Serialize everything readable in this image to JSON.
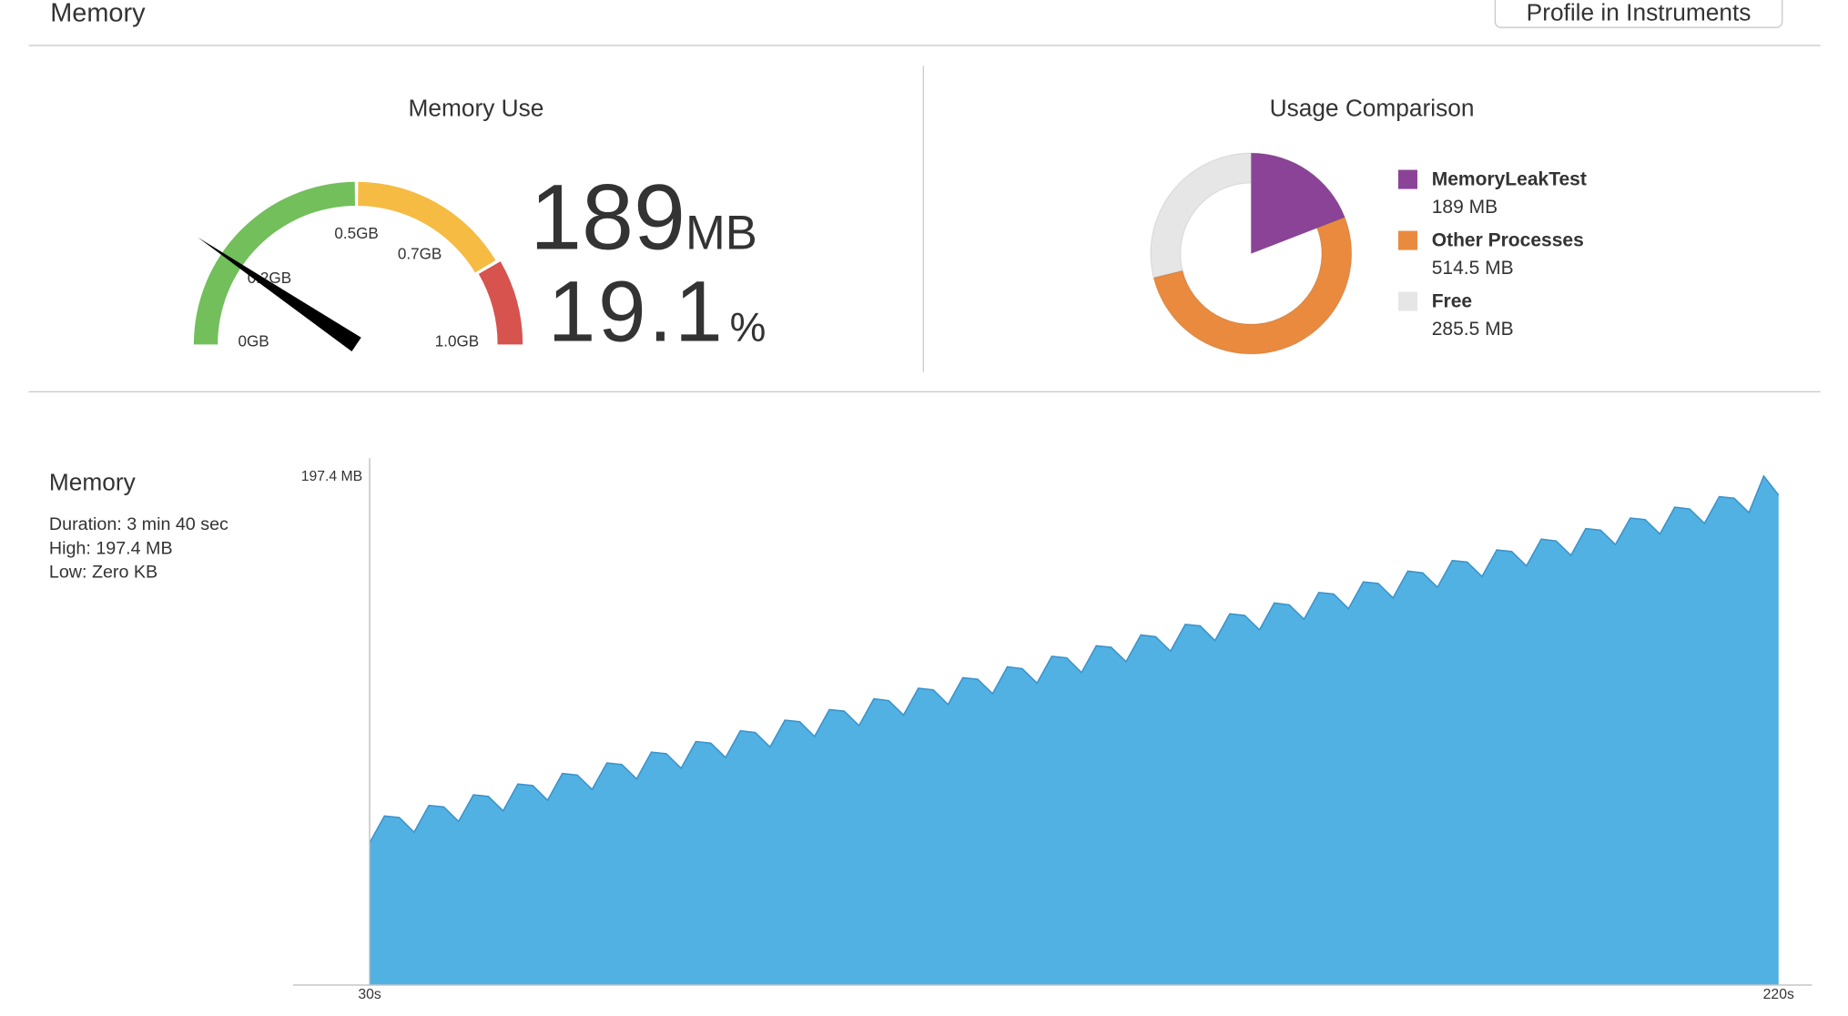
{
  "header": {
    "title": "Memory",
    "button": "Profile in Instruments"
  },
  "memory_use": {
    "title": "Memory Use",
    "value": 189,
    "unit": "MB",
    "percent": 19.1,
    "percent_unit": "%",
    "lim": [
      0,
      1000
    ],
    "ticks": [
      {
        "value": 0,
        "label": "0GB"
      },
      {
        "value": 200,
        "label": "0.2GB"
      },
      {
        "value": 500,
        "label": "0.5GB"
      },
      {
        "value": 700,
        "label": "0.7GB"
      },
      {
        "value": 1000,
        "label": "1.0GB"
      }
    ],
    "bands": [
      {
        "to": 500,
        "color": "#72bf5b"
      },
      {
        "to": 830,
        "color": "#f5bb43"
      },
      {
        "to": 1000,
        "color": "#d6534e"
      }
    ],
    "needle_color": "#000000"
  },
  "usage_comparison": {
    "title": "Usage Comparison",
    "items": [
      {
        "name": "MemoryLeakTest",
        "value": 189,
        "value_label": "189 MB",
        "color": "#8b4397"
      },
      {
        "name": "Other Processes",
        "value": 514.5,
        "value_label": "514.5 MB",
        "color": "#ea8a3e"
      },
      {
        "name": "Free",
        "value": 285.5,
        "value_label": "285.5 MB",
        "color": "#e6e6e6"
      }
    ]
  },
  "chart_data": {
    "type": "area",
    "title": "Memory",
    "details": [
      "Duration: 3 min 40 sec",
      "High: 197.4 MB",
      "Low: Zero KB"
    ],
    "color": "#52b1e3",
    "line_color": "#3c93c9",
    "xlim": [
      30,
      220
    ],
    "xticks": [
      {
        "value": 30,
        "label": "30s"
      },
      {
        "value": 220,
        "label": "220s"
      }
    ],
    "ylim": [
      0,
      197.4
    ],
    "yticks": [
      {
        "value": 197.4,
        "label": "197.4 MB"
      }
    ],
    "x": [
      30,
      32,
      34,
      36,
      38,
      40,
      42,
      44,
      46,
      48,
      50,
      52,
      54,
      56,
      58,
      60,
      62,
      64,
      66,
      68,
      70,
      72,
      74,
      76,
      78,
      80,
      82,
      84,
      86,
      88,
      90,
      92,
      94,
      96,
      98,
      100,
      102,
      104,
      106,
      108,
      110,
      112,
      114,
      116,
      118,
      120,
      122,
      124,
      126,
      128,
      130,
      132,
      134,
      136,
      138,
      140,
      142,
      144,
      146,
      148,
      150,
      152,
      154,
      156,
      158,
      160,
      162,
      164,
      166,
      168,
      170,
      172,
      174,
      176,
      178,
      180,
      182,
      184,
      186,
      188,
      190,
      192,
      194,
      196,
      198,
      200,
      202,
      204,
      206,
      208,
      210,
      212,
      214,
      216,
      218,
      220
    ],
    "values": [
      55.0,
      65.4,
      64.8,
      59.1,
      69.5,
      68.9,
      63.3,
      73.6,
      73.0,
      67.4,
      77.8,
      77.2,
      71.5,
      81.9,
      81.3,
      75.7,
      86.0,
      85.4,
      79.8,
      90.2,
      89.6,
      83.9,
      94.3,
      93.7,
      88.1,
      98.5,
      97.8,
      92.2,
      102.6,
      102.0,
      96.3,
      106.7,
      106.1,
      100.5,
      110.9,
      110.2,
      104.6,
      115.0,
      114.4,
      108.7,
      119.1,
      118.5,
      112.9,
      123.3,
      122.6,
      117.0,
      127.4,
      126.8,
      121.1,
      131.5,
      130.9,
      125.3,
      135.7,
      135.0,
      129.4,
      139.8,
      139.2,
      133.5,
      143.9,
      143.3,
      137.7,
      148.1,
      147.4,
      141.8,
      152.2,
      151.6,
      145.9,
      156.3,
      155.7,
      150.1,
      160.5,
      159.8,
      154.2,
      164.6,
      164.0,
      158.4,
      168.7,
      168.1,
      162.5,
      172.9,
      172.2,
      166.6,
      177.0,
      176.4,
      170.8,
      181.1,
      180.5,
      174.9,
      185.3,
      184.6,
      179.0,
      189.4,
      188.8,
      183.2,
      197.4,
      190.0
    ]
  }
}
